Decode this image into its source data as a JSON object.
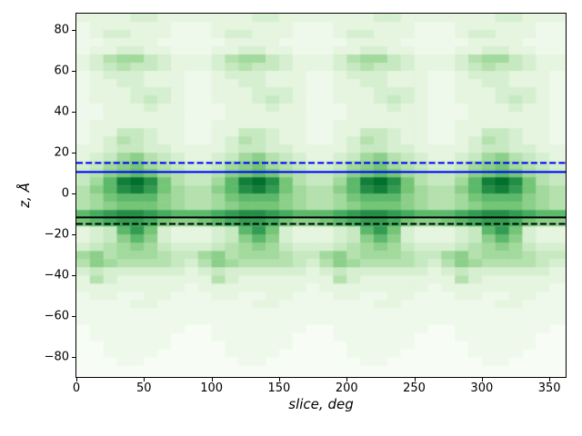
{
  "figure": {
    "background": "#ffffff",
    "spine_color": "#000000",
    "title": ""
  },
  "chart_data": {
    "type": "heatmap",
    "title": "",
    "xlabel": "slice, deg",
    "ylabel": "z, Å",
    "x_range": [
      0,
      362
    ],
    "y_range": [
      -89.6,
      88
    ],
    "x_ticks": [
      0,
      50,
      100,
      150,
      200,
      250,
      300,
      350
    ],
    "y_ticks": [
      80,
      60,
      40,
      20,
      0,
      -20,
      -40,
      -60,
      -80
    ],
    "grid": "off",
    "legend": "none",
    "x_bin_deg": 10,
    "y_bin_angstrom": 4,
    "z_top": 88,
    "n_cols": 36,
    "n_rows": 44,
    "pattern_period_deg": 90,
    "colormap": {
      "name": "Greens",
      "stops": [
        "#f7fcf5",
        "#e5f5e0",
        "#c7e9c0",
        "#a1d99b",
        "#74c476",
        "#41ab5d",
        "#238b45",
        "#006d2c",
        "#00441b"
      ],
      "scale": 0.93
    },
    "intensity_encoding": "each char is hex digit 0-15; color t = digit/15 * colormap.scale; rows ordered top (z=88..84) to bottom (z=-84..-88), 36 columns of 10 deg",
    "values_rows": [
      "222233222222233222222233222222233222",
      "122222211122222211122222211122222211",
      "123322211123322211123322211123322211",
      "112222111112222111112222111112222111",
      "122332211122332211122332211122332211",
      "235664322235664322235664322235664322",
      "234544322234544322234544322234544322",
      "123332221123332221123332221123332221",
      "122332221122332221122332221122332221",
      "122233321122233321122233321122233321",
      "122234321122234321122234321122234321",
      "112223221112223221112223221112223221",
      "112222221112222221112222221112222221",
      "122222221122222221122222221122222221",
      "122443221122443221122443221122443221",
      "123543221123543221123543221123543221",
      "223443322223443322223443322223443322",
      "234675432234675432234675432234675432",
      "346786543346786543346786543346786543",
      "457898654457898654457898654457898654",
      "469dec854469dec854469dec854469dec854",
      "579cdb865579cdb865579cdb865579cdb865",
      "568999765568999765568999765568999765",
      "567888765567888765567888765567888765",
      "9abccba999abccba999abccba999abccba99",
      "89abba87789abba87789abba87789abba877",
      "2349b83222349b83222349b83222349b8322",
      "234797322234797322234797322234797322",
      "345676433345676433345676433345676433",
      "675666544675666544675666544675666544",
      "576555543576555543576555543576555543",
      "343333332343333332343333332343333332",
      "253222222253222222253222222253222222",
      "222222221222222221222222221222222221",
      "122112211122112211122112211122112211",
      "111122111111122111111122111111122111",
      "111111111111111111111111111111111111",
      "111111111111111111111111111111111111",
      "011111110011111110011111110011111110",
      "011111100011111100011111100011111100",
      "001111100001111100001111100001111100",
      "001111000001111000001111000001111000",
      "000110000000110000000110000000110000",
      "000000000000000000000000000000000000"
    ],
    "hlines": [
      {
        "id": "hline-blue-dashed",
        "z": 15.0,
        "color": "#0000ff",
        "style": "dashed",
        "width": 2
      },
      {
        "id": "hline-blue-solid",
        "z": 10.6,
        "color": "#0000ff",
        "style": "solid",
        "width": 2
      },
      {
        "id": "hline-black-solid",
        "z": -11.6,
        "color": "#000000",
        "style": "solid",
        "width": 2
      },
      {
        "id": "hline-black-dashed",
        "z": -14.8,
        "color": "#000000",
        "style": "dashed",
        "width": 2
      }
    ]
  }
}
